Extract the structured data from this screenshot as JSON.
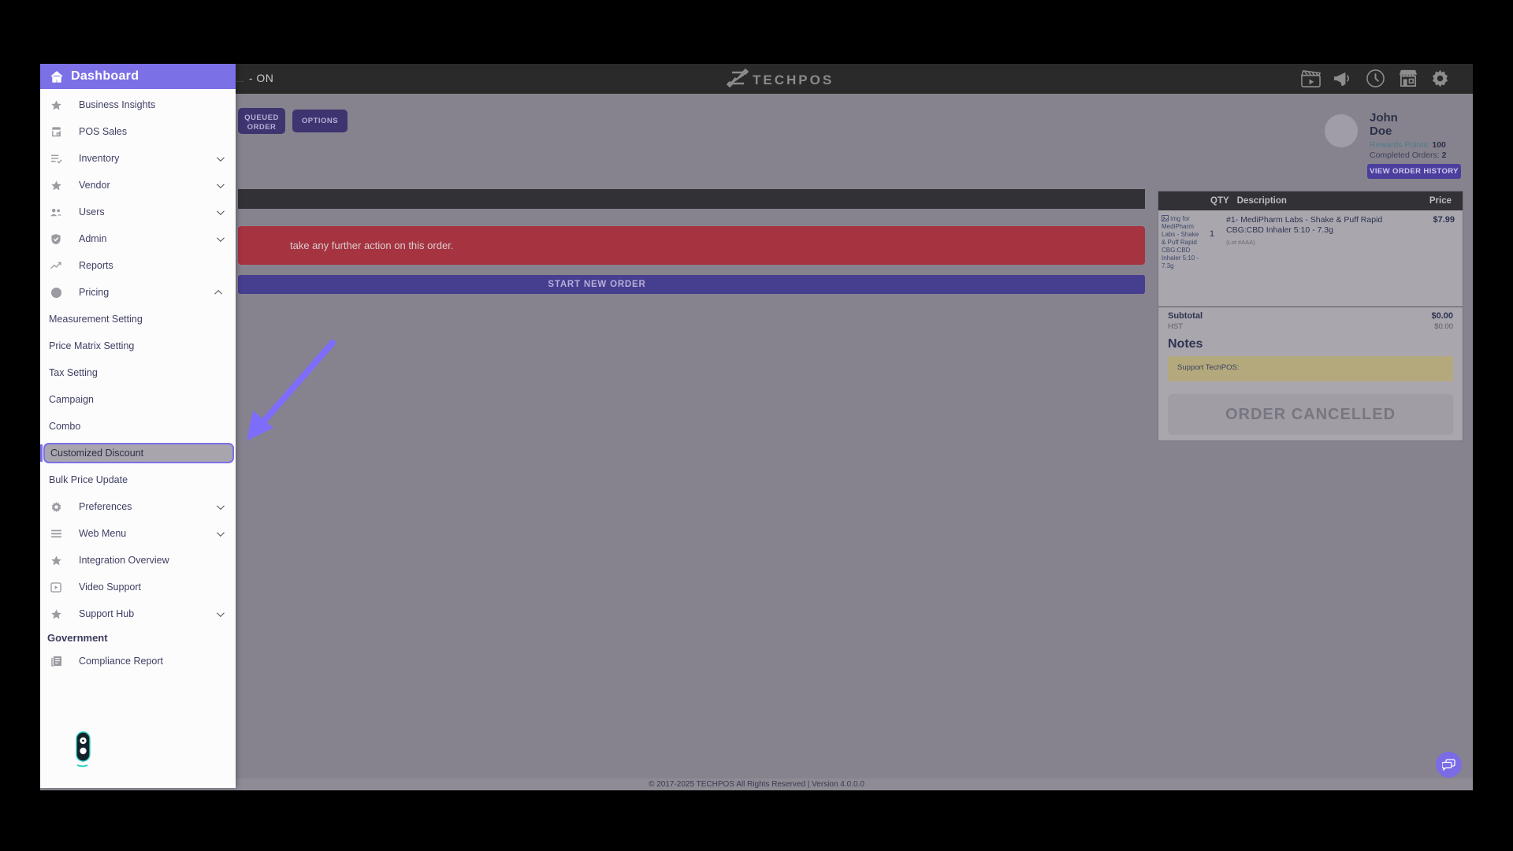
{
  "theme": {
    "accent": "#7b70e6",
    "arrow": "#7e6cfa",
    "banner_red": "#a63440",
    "bar_purple": "#463e8f",
    "btn_purple": "#3e3570",
    "notes_bg": "#b3a97d",
    "topbar_bg": "#2a2a2a",
    "dim_bg": "#87838e"
  },
  "topbar": {
    "status_prefix": "...",
    "status_text": "- ON",
    "brand": "TECHPOS",
    "icons": [
      "clapperboard-icon",
      "megaphone-icon",
      "clock-icon",
      "store-icon",
      "gear-icon"
    ]
  },
  "sidebar": {
    "title": "Dashboard",
    "items": [
      {
        "label": "Business Insights",
        "icon": "star-icon"
      },
      {
        "label": "POS Sales",
        "icon": "store-icon"
      },
      {
        "label": "Inventory",
        "icon": "checklist-icon",
        "chevron": "down"
      },
      {
        "label": "Vendor",
        "icon": "star-icon",
        "chevron": "down"
      },
      {
        "label": "Users",
        "icon": "users-icon",
        "chevron": "down"
      },
      {
        "label": "Admin",
        "icon": "shield-icon",
        "chevron": "down"
      },
      {
        "label": "Reports",
        "icon": "trend-icon"
      },
      {
        "label": "Pricing",
        "icon": "dollar-icon",
        "chevron": "up"
      },
      {
        "label": "Measurement Setting",
        "type": "sub"
      },
      {
        "label": "Price Matrix Setting",
        "type": "sub"
      },
      {
        "label": "Tax Setting",
        "type": "sub"
      },
      {
        "label": "Campaign",
        "type": "sub"
      },
      {
        "label": "Combo",
        "type": "sub"
      },
      {
        "label": "Customized Discount",
        "type": "sub",
        "active": true
      },
      {
        "label": "Bulk Price Update",
        "type": "sub"
      },
      {
        "label": "Preferences",
        "icon": "gear-icon",
        "chevron": "down"
      },
      {
        "label": "Web Menu",
        "icon": "menu-icon",
        "chevron": "down"
      },
      {
        "label": "Integration Overview",
        "icon": "star-icon"
      },
      {
        "label": "Video Support",
        "icon": "video-icon"
      },
      {
        "label": "Support Hub",
        "icon": "star-icon",
        "chevron": "down"
      },
      {
        "label": "Government",
        "type": "section"
      },
      {
        "label": "Compliance Report",
        "icon": "report-icon"
      }
    ]
  },
  "actions": {
    "queued_order": "QUEUED ORDER",
    "options": "OPTIONS",
    "start_new_order": "START NEW ORDER"
  },
  "banner": {
    "text": "take any further action on this order."
  },
  "user": {
    "first_name": "John",
    "last_name": "Doe",
    "rewards_label": "Rewards Points:",
    "rewards_value": "100",
    "completed_label": "Completed Orders:",
    "completed_value": "2",
    "history_button": "VIEW ORDER HISTORY"
  },
  "order_panel": {
    "headers": {
      "qty": "QTY",
      "description": "Description",
      "price": "Price"
    },
    "items": [
      {
        "alt_text": "img for MediPharm Labs - Shake & Puff Rapid CBG:CBD Inhaler 5:10 - 7.3g",
        "qty": "1",
        "name": "#1- MediPharm Labs - Shake & Puff Rapid CBG:CBD Inhaler 5:10 - 7.3g",
        "lot": "(Lot #AAA)",
        "price": "$7.99"
      }
    ],
    "subtotal_label": "Subtotal",
    "subtotal_value": "$0.00",
    "tax_label": "HST",
    "tax_value": "$0.00",
    "notes_label": "Notes",
    "note_text": "Support TechPOS:",
    "cancelled_label": "ORDER CANCELLED"
  },
  "footer": {
    "text": "© 2017-2025 TECHPOS All Rights Reserved | Version 4.0.0.0"
  }
}
